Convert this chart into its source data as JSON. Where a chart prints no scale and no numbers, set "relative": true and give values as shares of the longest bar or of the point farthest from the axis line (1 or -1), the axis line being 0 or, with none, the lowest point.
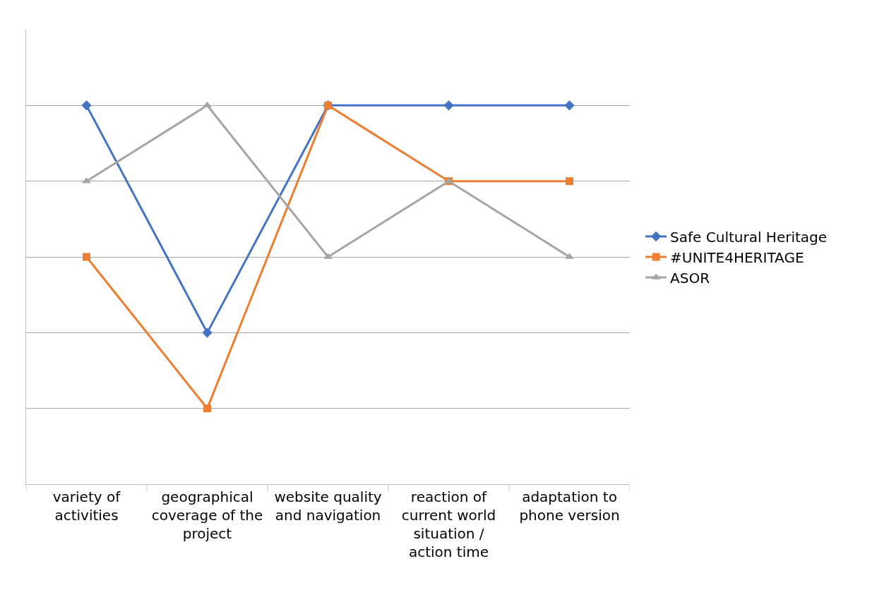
{
  "chart_data": {
    "type": "line",
    "relative": true,
    "grid": "y",
    "legend": "right",
    "line_style": "solid",
    "categories": [
      "variety of activities",
      "geographical coverage of the project",
      "website quality and navigation",
      "reaction of current world situation / action time",
      "adaptation to phone version"
    ],
    "series": [
      {
        "name": "Safe Cultural Heritage",
        "color": "#4472c4",
        "marker": "diamond",
        "values": [
          1,
          0.4,
          1,
          1,
          1
        ]
      },
      {
        "name": "#UNITE4HERITAGE",
        "color": "#ed7d31",
        "marker": "square",
        "values": [
          0.6,
          0.2,
          1,
          0.8,
          0.8
        ]
      },
      {
        "name": "ASOR",
        "color": "#a5a5a5",
        "marker": "triangle",
        "values": [
          0.8,
          1,
          0.6,
          0.8,
          0.6
        ]
      }
    ]
  }
}
